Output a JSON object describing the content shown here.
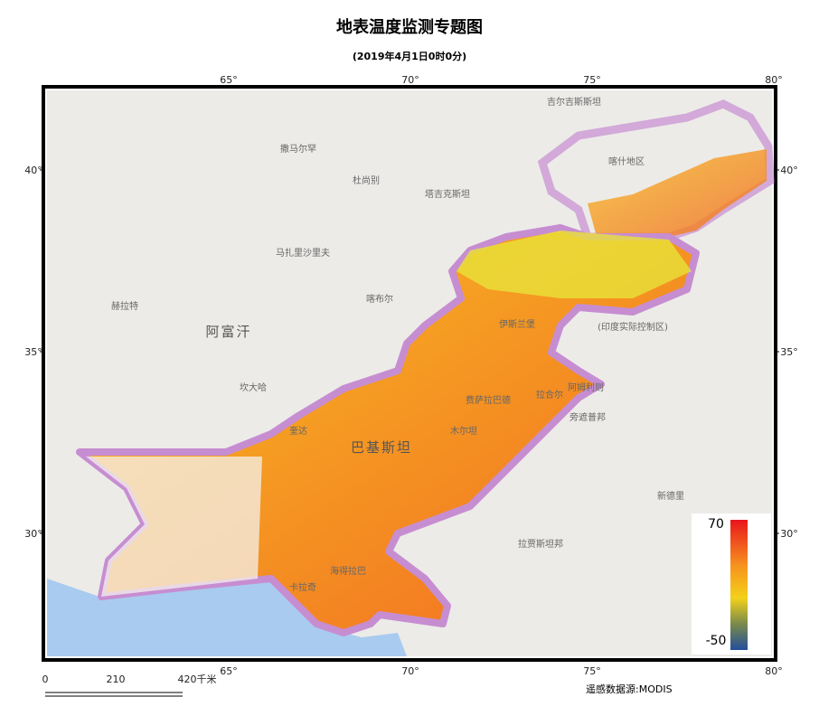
{
  "header": {
    "title": "地表温度监测专题图",
    "subtitle": "(2019年4月1日0时0分)"
  },
  "map": {
    "lon_ticks": [
      {
        "value": 65,
        "label": "65°"
      },
      {
        "value": 70,
        "label": "70°"
      },
      {
        "value": 75,
        "label": "75°"
      },
      {
        "value": 80,
        "label": "80°"
      }
    ],
    "lat_ticks": [
      {
        "value": 40,
        "label": "40°"
      },
      {
        "value": 35,
        "label": "35°"
      },
      {
        "value": 30,
        "label": "30°"
      }
    ],
    "places": [
      "阿富汗",
      "巴基斯坦",
      "塔吉克斯坦",
      "吉尔吉斯斯坦",
      "喀什地区",
      "喀布尔",
      "伊斯兰堡",
      "费萨拉巴德",
      "拉合尔",
      "木尔坦",
      "卡拉奇",
      "海得拉巴",
      "奎达",
      "新德里",
      "拉贾斯坦邦",
      "旁遮普邦",
      "(印度实际控制区)",
      "撒马尔罕",
      "杜尚别",
      "马扎里沙里夫",
      "赫拉特",
      "坎大哈",
      "阿姆利则"
    ]
  },
  "legend": {
    "max": 70,
    "min": -50
  },
  "scale_bar": {
    "labels": [
      "0",
      "210",
      "420千米"
    ]
  },
  "source": "遥感数据源:MODIS"
}
